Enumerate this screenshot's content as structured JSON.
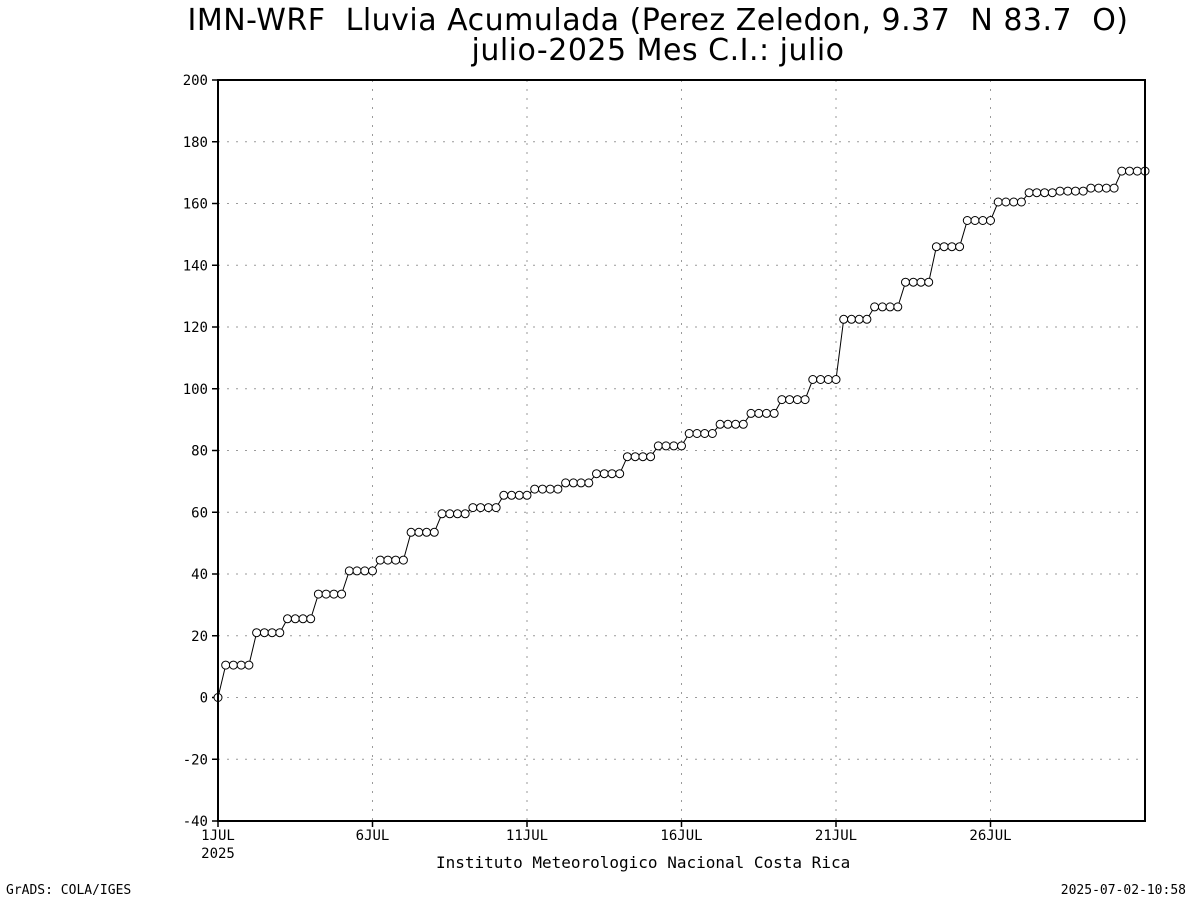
{
  "title_line1": "IMN-WRF  Lluvia Acumulada (Perez Zeledon, 9.37  N 83.7  O)",
  "title_line2": "julio-2025 Mes C.I.: julio",
  "xlabel": "Instituto Meteorologico Nacional Costa Rica",
  "credit": "GrADS: COLA/IGES",
  "timestamp": "2025-07-02-10:58",
  "chart_data": {
    "type": "line",
    "title": "IMN-WRF  Lluvia Acumulada (Perez Zeledon, 9.37  N 83.7  O)",
    "subtitle": "julio-2025 Mes C.I.: julio",
    "xlabel": "Instituto Meteorologico Nacional Costa Rica",
    "ylabel": "",
    "ylim": [
      -40,
      200
    ],
    "yticks": [
      -40,
      -20,
      0,
      20,
      40,
      60,
      80,
      100,
      120,
      140,
      160,
      180,
      200
    ],
    "xlim": [
      "2025-07-01",
      "2025-07-31"
    ],
    "xticks": [
      {
        "date": "2025-07-01",
        "label": "1JUL",
        "sublabel": "2025"
      },
      {
        "date": "2025-07-06",
        "label": "6JUL",
        "sublabel": ""
      },
      {
        "date": "2025-07-11",
        "label": "11JUL",
        "sublabel": ""
      },
      {
        "date": "2025-07-16",
        "label": "16JUL",
        "sublabel": ""
      },
      {
        "date": "2025-07-21",
        "label": "21JUL",
        "sublabel": ""
      },
      {
        "date": "2025-07-26",
        "label": "26JUL",
        "sublabel": ""
      }
    ],
    "grid": true,
    "marker": "open-circle",
    "x": [
      "2025-07-01 00:00",
      "2025-07-01 06:00",
      "2025-07-01 12:00",
      "2025-07-01 18:00",
      "2025-07-02 00:00",
      "2025-07-02 06:00",
      "2025-07-02 12:00",
      "2025-07-02 18:00",
      "2025-07-03 00:00",
      "2025-07-03 06:00",
      "2025-07-03 12:00",
      "2025-07-03 18:00",
      "2025-07-04 00:00",
      "2025-07-04 06:00",
      "2025-07-04 12:00",
      "2025-07-04 18:00",
      "2025-07-05 00:00",
      "2025-07-05 06:00",
      "2025-07-05 12:00",
      "2025-07-05 18:00",
      "2025-07-06 00:00",
      "2025-07-06 06:00",
      "2025-07-06 12:00",
      "2025-07-06 18:00",
      "2025-07-07 00:00",
      "2025-07-07 06:00",
      "2025-07-07 12:00",
      "2025-07-07 18:00",
      "2025-07-08 00:00",
      "2025-07-08 06:00",
      "2025-07-08 12:00",
      "2025-07-08 18:00",
      "2025-07-09 00:00",
      "2025-07-09 06:00",
      "2025-07-09 12:00",
      "2025-07-09 18:00",
      "2025-07-10 00:00",
      "2025-07-10 06:00",
      "2025-07-10 12:00",
      "2025-07-10 18:00",
      "2025-07-11 00:00",
      "2025-07-11 06:00",
      "2025-07-11 12:00",
      "2025-07-11 18:00",
      "2025-07-12 00:00",
      "2025-07-12 06:00",
      "2025-07-12 12:00",
      "2025-07-12 18:00",
      "2025-07-13 00:00",
      "2025-07-13 06:00",
      "2025-07-13 12:00",
      "2025-07-13 18:00",
      "2025-07-14 00:00",
      "2025-07-14 06:00",
      "2025-07-14 12:00",
      "2025-07-14 18:00",
      "2025-07-15 00:00",
      "2025-07-15 06:00",
      "2025-07-15 12:00",
      "2025-07-15 18:00",
      "2025-07-16 00:00",
      "2025-07-16 06:00",
      "2025-07-16 12:00",
      "2025-07-16 18:00",
      "2025-07-17 00:00",
      "2025-07-17 06:00",
      "2025-07-17 12:00",
      "2025-07-17 18:00",
      "2025-07-18 00:00",
      "2025-07-18 06:00",
      "2025-07-18 12:00",
      "2025-07-18 18:00",
      "2025-07-19 00:00",
      "2025-07-19 06:00",
      "2025-07-19 12:00",
      "2025-07-19 18:00",
      "2025-07-20 00:00",
      "2025-07-20 06:00",
      "2025-07-20 12:00",
      "2025-07-20 18:00",
      "2025-07-21 00:00",
      "2025-07-21 06:00",
      "2025-07-21 12:00",
      "2025-07-21 18:00",
      "2025-07-22 00:00",
      "2025-07-22 06:00",
      "2025-07-22 12:00",
      "2025-07-22 18:00",
      "2025-07-23 00:00",
      "2025-07-23 06:00",
      "2025-07-23 12:00",
      "2025-07-23 18:00",
      "2025-07-24 00:00",
      "2025-07-24 06:00",
      "2025-07-24 12:00",
      "2025-07-24 18:00",
      "2025-07-25 00:00",
      "2025-07-25 06:00",
      "2025-07-25 12:00",
      "2025-07-25 18:00",
      "2025-07-26 00:00",
      "2025-07-26 06:00",
      "2025-07-26 12:00",
      "2025-07-26 18:00",
      "2025-07-27 00:00",
      "2025-07-27 06:00",
      "2025-07-27 12:00",
      "2025-07-27 18:00",
      "2025-07-28 00:00",
      "2025-07-28 06:00",
      "2025-07-28 12:00",
      "2025-07-28 18:00",
      "2025-07-29 00:00",
      "2025-07-29 06:00",
      "2025-07-29 12:00",
      "2025-07-29 18:00",
      "2025-07-30 00:00",
      "2025-07-30 06:00",
      "2025-07-30 12:00",
      "2025-07-30 18:00",
      "2025-07-31 00:00"
    ],
    "values": [
      0,
      10.5,
      10.5,
      10.5,
      10.5,
      21,
      21,
      21,
      21,
      25.5,
      25.5,
      25.5,
      25.5,
      33.5,
      33.5,
      33.5,
      33.5,
      41,
      41,
      41,
      41,
      44.5,
      44.5,
      44.5,
      44.5,
      53.5,
      53.5,
      53.5,
      53.5,
      59.5,
      59.5,
      59.5,
      59.5,
      61.5,
      61.5,
      61.5,
      61.5,
      65.5,
      65.5,
      65.5,
      65.5,
      67.5,
      67.5,
      67.5,
      67.5,
      69.5,
      69.5,
      69.5,
      69.5,
      72.5,
      72.5,
      72.5,
      72.5,
      78,
      78,
      78,
      78,
      81.5,
      81.5,
      81.5,
      81.5,
      85.5,
      85.5,
      85.5,
      85.5,
      88.5,
      88.5,
      88.5,
      88.5,
      92,
      92,
      92,
      92,
      96.5,
      96.5,
      96.5,
      96.5,
      103,
      103,
      103,
      103,
      122.5,
      122.5,
      122.5,
      122.5,
      126.5,
      126.5,
      126.5,
      126.5,
      134.5,
      134.5,
      134.5,
      134.5,
      146,
      146,
      146,
      146,
      154.5,
      154.5,
      154.5,
      154.5,
      160.5,
      160.5,
      160.5,
      160.5,
      163.5,
      163.5,
      163.5,
      163.5,
      164,
      164,
      164,
      164,
      165,
      165,
      165,
      165,
      170.5,
      170.5,
      170.5,
      170.5
    ]
  }
}
